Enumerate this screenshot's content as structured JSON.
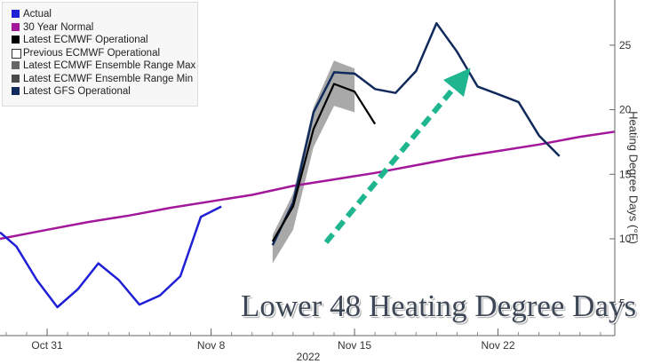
{
  "chart_data": {
    "type": "line",
    "title": "Lower 48 Heating Degree Days",
    "ylabel": "Heating Degree Days (°F)",
    "xlabel": "2022",
    "ylim": [
      2.5,
      28.5
    ],
    "yticks": [
      5,
      10,
      15,
      20,
      25
    ],
    "x_ticks": [
      {
        "label": "Oct 31",
        "day": 0
      },
      {
        "label": "Nov 8",
        "day": 8
      },
      {
        "label": "Nov 15",
        "day": 15
      },
      {
        "label": "Nov 22",
        "day": 22
      }
    ],
    "xlim": [
      -2.3,
      27.7
    ],
    "grid": false,
    "legend": "top-left",
    "series": [
      {
        "name": "Actual",
        "color": "#1f1fd6",
        "x": [
          -2.3,
          -1.5,
          -0.5,
          0.5,
          1.5,
          2.5,
          3.5,
          4.5,
          5.5,
          6.5,
          7.5,
          8.5
        ],
        "y": [
          10.5,
          9.4,
          6.8,
          4.7,
          6.1,
          8.1,
          6.8,
          4.9,
          5.6,
          7.1,
          11.7,
          12.5
        ]
      },
      {
        "name": "30 Year Normal",
        "color": "#a3179b",
        "x": [
          -2.3,
          0,
          2,
          4,
          6,
          8,
          10,
          12,
          14,
          16,
          18,
          20,
          22,
          24,
          26,
          27.7
        ],
        "y": [
          10.0,
          10.7,
          11.3,
          11.8,
          12.4,
          12.9,
          13.4,
          14.1,
          14.6,
          15.1,
          15.7,
          16.3,
          16.8,
          17.3,
          17.9,
          18.3
        ]
      },
      {
        "name": "Latest ECMWF Operational",
        "color": "#000000",
        "x": [
          11,
          12,
          13,
          14,
          15,
          16
        ],
        "y": [
          9.8,
          12.5,
          18.5,
          22.0,
          21.4,
          18.9
        ]
      },
      {
        "name": "Previous ECMWF Operational",
        "color": "#ffffff",
        "x": [],
        "y": []
      },
      {
        "name": "Latest ECMWF Ensemble Range Max",
        "color": "#666666",
        "x": [
          11,
          12,
          13,
          14,
          15
        ],
        "y": [
          10.3,
          13.5,
          20.2,
          23.8,
          23.2
        ]
      },
      {
        "name": "Latest ECMWF Ensemble Range Min",
        "color": "#4a4a4a",
        "x": [
          11,
          12,
          13,
          14,
          15
        ],
        "y": [
          8.1,
          10.7,
          17.1,
          20.3,
          19.8
        ]
      },
      {
        "name": "Latest GFS Operational",
        "color": "#102a5c",
        "x": [
          11,
          12,
          13,
          14,
          15,
          16,
          17,
          18,
          19,
          20,
          21,
          22,
          23,
          24,
          25
        ],
        "y": [
          9.5,
          12.8,
          19.8,
          22.9,
          22.8,
          21.6,
          21.3,
          23.0,
          26.7,
          24.5,
          21.8,
          21.2,
          20.6,
          18.0,
          16.4
        ]
      }
    ]
  },
  "legend_items": [
    {
      "label": "Actual",
      "color": "#1f1fd6"
    },
    {
      "label": "30 Year Normal",
      "color": "#a3179b"
    },
    {
      "label": "Latest ECMWF Operational",
      "color": "#000000"
    },
    {
      "label": "Previous ECMWF Operational",
      "color": "#ffffff"
    },
    {
      "label": "Latest ECMWF Ensemble Range Max",
      "color": "#666666"
    },
    {
      "label": "Latest ECMWF Ensemble Range Min",
      "color": "#4a4a4a"
    },
    {
      "label": "Latest GFS Operational",
      "color": "#102a5c"
    }
  ],
  "arrow_color": "#1fb58f"
}
